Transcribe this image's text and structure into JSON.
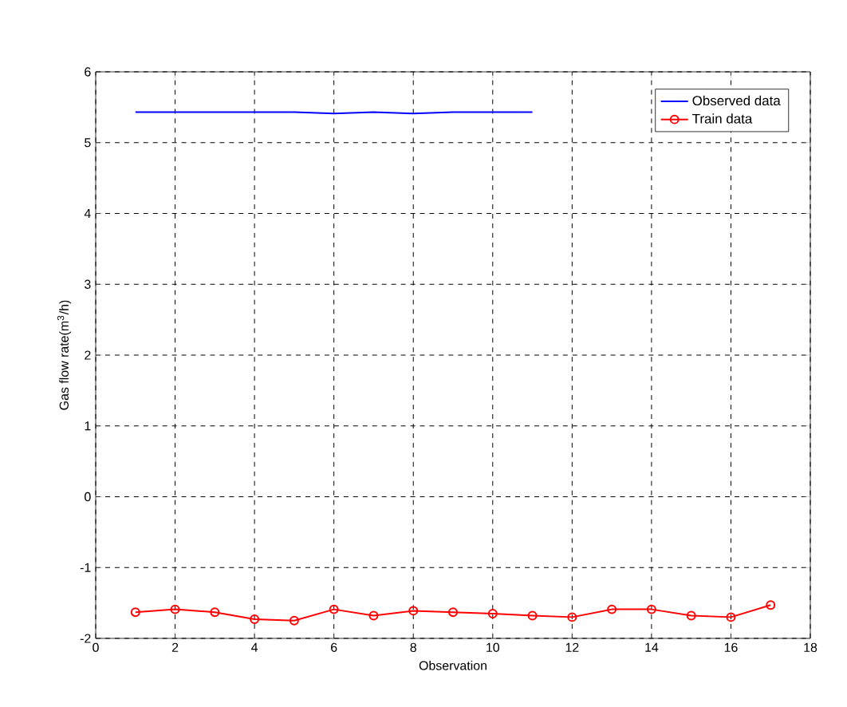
{
  "chart_data": {
    "type": "line",
    "xlabel": "Observation",
    "ylabel": "Gas flow rate(m$^{3}$/h)",
    "x": [
      1,
      2,
      3,
      4,
      5,
      6,
      7,
      8,
      9,
      10,
      11,
      12,
      13,
      14,
      15,
      16,
      17
    ],
    "series": [
      {
        "name": "Observed data",
        "color": "#0000ff",
        "marker": "none",
        "values": [
          5.43,
          5.43,
          5.43,
          5.43,
          5.43,
          5.41,
          5.43,
          5.41,
          5.43,
          5.43,
          5.43,
          null,
          null,
          null,
          null,
          null,
          null
        ]
      },
      {
        "name": "Train data",
        "color": "#ff0000",
        "marker": "circle",
        "values": [
          -1.63,
          -1.59,
          -1.63,
          -1.73,
          -1.75,
          -1.59,
          -1.68,
          -1.61,
          -1.63,
          -1.65,
          -1.68,
          -1.7,
          -1.59,
          -1.59,
          -1.68,
          -1.7,
          -1.53
        ]
      }
    ],
    "xlim": [
      0,
      18
    ],
    "xticks": [
      0,
      2,
      4,
      6,
      8,
      10,
      12,
      14,
      16,
      18
    ],
    "ylim": [
      -2,
      6
    ],
    "yticks": [
      -2,
      -1,
      0,
      1,
      2,
      3,
      4,
      5,
      6
    ],
    "grid": true,
    "legend": "top right"
  }
}
